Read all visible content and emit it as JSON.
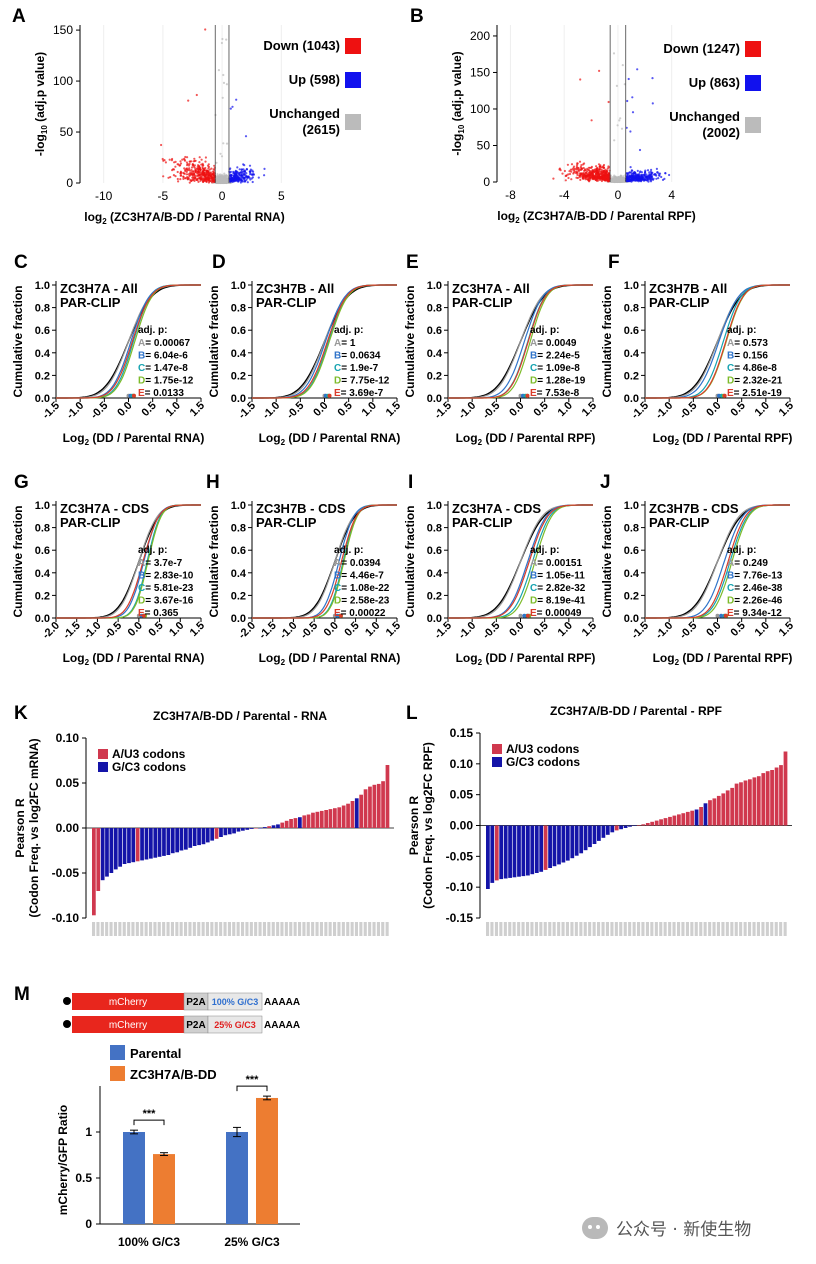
{
  "panels": {
    "A": "A",
    "B": "B",
    "C": "C",
    "D": "D",
    "E": "E",
    "F": "F",
    "G": "G",
    "H": "H",
    "I": "I",
    "J": "J",
    "K": "K",
    "L": "L",
    "M": "M"
  },
  "watermark": "公众号 · 新使生物",
  "colors": {
    "down": "#ee1111",
    "up": "#1111ee",
    "unchanged": "#bbbbbb",
    "au3": "#d0384e",
    "gc3": "#1414a8",
    "parental": "#4472c4",
    "dd": "#ed7d31",
    "A": "#999999",
    "B": "#2f73c9",
    "C": "#16a3b0",
    "D": "#7dbb2a",
    "E": "#d93c2a"
  },
  "chart_data": [
    {
      "id": "A",
      "type": "scatter",
      "xlabel": "log2 (ZC3H7A/B-DD / Parental RNA)",
      "ylabel": "-log10 (adj.p value)",
      "xticks": [
        -10,
        -5,
        0,
        5
      ],
      "yticks": [
        0,
        50,
        100,
        150
      ],
      "xlim": [
        -12,
        7
      ],
      "ylim": [
        0,
        155
      ],
      "vlines": [
        -0.58,
        0.58
      ],
      "legend": [
        {
          "label": "Down (1043)",
          "color": "#ee1111"
        },
        {
          "label": "Up (598)",
          "color": "#1111ee"
        },
        {
          "label": "Unchanged\n(2615)",
          "color": "#bbbbbb"
        }
      ],
      "groups": {
        "down": 1043,
        "up": 598,
        "unchanged": 2615
      }
    },
    {
      "id": "B",
      "type": "scatter",
      "xlabel": "log2 (ZC3H7A/B-DD / Parental RPF)",
      "ylabel": "-log10 (adj.p value)",
      "xticks": [
        -8,
        -4,
        0,
        4
      ],
      "yticks": [
        0,
        50,
        100,
        150,
        200
      ],
      "xlim": [
        -9,
        7
      ],
      "ylim": [
        0,
        215
      ],
      "vlines": [
        -0.58,
        0.58
      ],
      "legend": [
        {
          "label": "Down (1247)",
          "color": "#ee1111"
        },
        {
          "label": "Up (863)",
          "color": "#1111ee"
        },
        {
          "label": "Unchanged\n(2002)",
          "color": "#bbbbbb"
        }
      ],
      "groups": {
        "down": 1247,
        "up": 863,
        "unchanged": 2002
      }
    },
    {
      "id": "C",
      "type": "line",
      "title": "ZC3H7A - All\nPAR-CLIP",
      "xlabel": "Log2 (DD / Parental RNA)",
      "ylabel": "Cumulative fraction",
      "xticks": [
        -1.5,
        -1.0,
        -0.5,
        0.0,
        0.5,
        1.0,
        1.5
      ],
      "yticks": [
        0.0,
        0.2,
        0.4,
        0.6,
        0.8,
        1.0
      ],
      "xlim": [
        -1.5,
        1.5
      ],
      "stats_title": "adj. p:",
      "stats": [
        {
          "k": "A",
          "v": "0.00067"
        },
        {
          "k": "B",
          "v": "6.04e-6"
        },
        {
          "k": "C",
          "v": "1.47e-8"
        },
        {
          "k": "D",
          "v": "1.75e-12"
        },
        {
          "k": "E",
          "v": "0.0133"
        }
      ],
      "medians": [
        0.0,
        0.05,
        0.1,
        0.13,
        0.08
      ],
      "spreads": [
        0.35,
        0.3,
        0.28,
        0.28,
        0.3
      ]
    },
    {
      "id": "D",
      "type": "line",
      "title": "ZC3H7B - All\nPAR-CLIP",
      "xlabel": "Log2 (DD / Parental RNA)",
      "ylabel": "Cumulative fraction",
      "xticks": [
        -1.5,
        -1.0,
        -0.5,
        0.0,
        0.5,
        1.0,
        1.5
      ],
      "yticks": [
        0.0,
        0.2,
        0.4,
        0.6,
        0.8,
        1.0
      ],
      "xlim": [
        -1.5,
        1.5
      ],
      "stats_title": "adj. p:",
      "stats": [
        {
          "k": "A",
          "v": "1"
        },
        {
          "k": "B",
          "v": "0.0634"
        },
        {
          "k": "C",
          "v": "1.9e-7"
        },
        {
          "k": "D",
          "v": "7.75e-12"
        },
        {
          "k": "E",
          "v": "3.69e-7"
        }
      ],
      "medians": [
        0.0,
        0.02,
        0.08,
        0.1,
        0.06
      ],
      "spreads": [
        0.35,
        0.32,
        0.3,
        0.3,
        0.31
      ]
    },
    {
      "id": "E",
      "type": "line",
      "title": "ZC3H7A - All\nPAR-CLIP",
      "xlabel": "Log2 (DD / Parental RPF)",
      "ylabel": "Cumulative fraction",
      "xticks": [
        -1.5,
        -1.0,
        -0.5,
        0.0,
        0.5,
        1.0,
        1.5
      ],
      "yticks": [
        0.0,
        0.2,
        0.4,
        0.6,
        0.8,
        1.0
      ],
      "xlim": [
        -1.5,
        1.5
      ],
      "stats_title": "adj. p:",
      "stats": [
        {
          "k": "A",
          "v": "0.0049"
        },
        {
          "k": "B",
          "v": "2.24e-5"
        },
        {
          "k": "C",
          "v": "1.09e-8"
        },
        {
          "k": "D",
          "v": "1.28e-19"
        },
        {
          "k": "E",
          "v": "7.53e-8"
        }
      ],
      "medians": [
        0.0,
        0.08,
        0.15,
        0.2,
        0.16
      ],
      "spreads": [
        0.35,
        0.3,
        0.28,
        0.27,
        0.28
      ]
    },
    {
      "id": "F",
      "type": "line",
      "title": "ZC3H7B - All\nPAR-CLIP",
      "xlabel": "Log2 (DD / Parental RPF)",
      "ylabel": "Cumulative fraction",
      "xticks": [
        -1.5,
        -1.0,
        -0.5,
        0.0,
        0.5,
        1.0,
        1.5
      ],
      "yticks": [
        0.0,
        0.2,
        0.4,
        0.6,
        0.8,
        1.0
      ],
      "xlim": [
        -1.5,
        1.5
      ],
      "stats_title": "adj. p:",
      "stats": [
        {
          "k": "A",
          "v": "0.573"
        },
        {
          "k": "B",
          "v": "0.156"
        },
        {
          "k": "C",
          "v": "4.86e-8"
        },
        {
          "k": "D",
          "v": "2.32e-21"
        },
        {
          "k": "E",
          "v": "2.51e-19"
        }
      ],
      "medians": [
        0.0,
        0.03,
        0.12,
        0.18,
        0.17
      ],
      "spreads": [
        0.35,
        0.32,
        0.29,
        0.28,
        0.28
      ]
    },
    {
      "id": "G",
      "type": "line",
      "title": "ZC3H7A - CDS\nPAR-CLIP",
      "xlabel": "Log2 (DD / Parental RNA)",
      "ylabel": "Cumulative fraction",
      "xticks": [
        -2.0,
        -1.5,
        -1.0,
        -0.5,
        0.0,
        0.5,
        1.0,
        1.5
      ],
      "yticks": [
        0.0,
        0.2,
        0.4,
        0.6,
        0.8,
        1.0
      ],
      "xlim": [
        -2.0,
        1.5
      ],
      "stats_title": "adj. p:",
      "stats": [
        {
          "k": "A",
          "v": "3.7e-7"
        },
        {
          "k": "B",
          "v": "2.83e-10"
        },
        {
          "k": "C",
          "v": "5.81e-23"
        },
        {
          "k": "D",
          "v": "3.67e-16"
        },
        {
          "k": "E",
          "v": "0.365"
        }
      ],
      "medians": [
        0.0,
        0.12,
        0.2,
        0.22,
        0.1
      ],
      "spreads": [
        0.35,
        0.28,
        0.25,
        0.25,
        0.3
      ]
    },
    {
      "id": "H",
      "type": "line",
      "title": "ZC3H7B - CDS\nPAR-CLIP",
      "xlabel": "Log2 (DD / Parental RNA)",
      "ylabel": "Cumulative fraction",
      "xticks": [
        -2.0,
        -1.5,
        -1.0,
        -0.5,
        0.0,
        0.5,
        1.0,
        1.5
      ],
      "yticks": [
        0.0,
        0.2,
        0.4,
        0.6,
        0.8,
        1.0
      ],
      "xlim": [
        -2.0,
        1.5
      ],
      "stats_title": "adj. p:",
      "stats": [
        {
          "k": "A",
          "v": "0.0394"
        },
        {
          "k": "B",
          "v": "4.46e-7"
        },
        {
          "k": "C",
          "v": "1.08e-22"
        },
        {
          "k": "D",
          "v": "2.58e-23"
        },
        {
          "k": "E",
          "v": "0.00022"
        }
      ],
      "medians": [
        0.0,
        0.1,
        0.2,
        0.22,
        0.16
      ],
      "spreads": [
        0.35,
        0.28,
        0.25,
        0.25,
        0.28
      ]
    },
    {
      "id": "I",
      "type": "line",
      "title": "ZC3H7A - CDS\nPAR-CLIP",
      "xlabel": "Log2 (DD / Parental RPF)",
      "ylabel": "Cumulative fraction",
      "xticks": [
        -1.5,
        -1.0,
        -0.5,
        0.0,
        0.5,
        1.0,
        1.5
      ],
      "yticks": [
        0.0,
        0.2,
        0.4,
        0.6,
        0.8,
        1.0
      ],
      "xlim": [
        -1.5,
        1.5
      ],
      "stats_title": "adj. p:",
      "stats": [
        {
          "k": "A",
          "v": "0.00151"
        },
        {
          "k": "B",
          "v": "1.05e-11"
        },
        {
          "k": "C",
          "v": "2.82e-32"
        },
        {
          "k": "D",
          "v": "8.19e-41"
        },
        {
          "k": "E",
          "v": "0.00049"
        }
      ],
      "medians": [
        0.0,
        0.15,
        0.25,
        0.3,
        0.18
      ],
      "spreads": [
        0.35,
        0.3,
        0.28,
        0.27,
        0.3
      ]
    },
    {
      "id": "J",
      "type": "line",
      "title": "ZC3H7B - CDS\nPAR-CLIP",
      "xlabel": "Log2 (DD / Parental RPF)",
      "ylabel": "Cumulative fraction",
      "xticks": [
        -1.5,
        -1.0,
        -0.5,
        0.0,
        0.5,
        1.0,
        1.5
      ],
      "yticks": [
        0.0,
        0.2,
        0.4,
        0.6,
        0.8,
        1.0
      ],
      "xlim": [
        -1.5,
        1.5
      ],
      "stats_title": "adj. p:",
      "stats": [
        {
          "k": "A",
          "v": "0.249"
        },
        {
          "k": "B",
          "v": "7.76e-13"
        },
        {
          "k": "C",
          "v": "2.46e-38"
        },
        {
          "k": "D",
          "v": "2.26e-46"
        },
        {
          "k": "E",
          "v": "9.34e-12"
        }
      ],
      "medians": [
        0.0,
        0.14,
        0.26,
        0.3,
        0.22
      ],
      "spreads": [
        0.35,
        0.3,
        0.28,
        0.27,
        0.28
      ]
    },
    {
      "id": "K",
      "type": "bar",
      "title": "ZC3H7A/B-DD / Parental - RNA",
      "ylabel": "Pearson R\n(Codon Freq. vs log2FC mRNA)",
      "yticks": [
        -0.1,
        -0.05,
        0.0,
        0.05,
        0.1
      ],
      "ylim": [
        -0.1,
        0.1
      ],
      "legend": [
        {
          "label": "A/U3 codons",
          "color": "#d0384e"
        },
        {
          "label": "G/C3 codons",
          "color": "#1414a8"
        }
      ],
      "values": [
        -0.097,
        -0.07,
        -0.058,
        -0.054,
        -0.05,
        -0.046,
        -0.043,
        -0.04,
        -0.039,
        -0.038,
        -0.037,
        -0.036,
        -0.035,
        -0.034,
        -0.033,
        -0.032,
        -0.031,
        -0.03,
        -0.028,
        -0.027,
        -0.025,
        -0.024,
        -0.022,
        -0.02,
        -0.019,
        -0.018,
        -0.016,
        -0.014,
        -0.012,
        -0.01,
        -0.008,
        -0.007,
        -0.006,
        -0.004,
        -0.003,
        -0.002,
        -0.001,
        0.0,
        0.0,
        0.001,
        0.002,
        0.003,
        0.004,
        0.006,
        0.008,
        0.01,
        0.011,
        0.012,
        0.014,
        0.015,
        0.017,
        0.018,
        0.019,
        0.02,
        0.021,
        0.022,
        0.023,
        0.025,
        0.027,
        0.03,
        0.033,
        0.037,
        0.043,
        0.046,
        0.048,
        0.049,
        0.052,
        0.07
      ],
      "groups": [
        "AU",
        "AU",
        "GC",
        "GC",
        "GC",
        "GC",
        "GC",
        "GC",
        "GC",
        "GC",
        "AU",
        "GC",
        "GC",
        "GC",
        "GC",
        "GC",
        "GC",
        "GC",
        "GC",
        "GC",
        "GC",
        "GC",
        "GC",
        "GC",
        "GC",
        "GC",
        "GC",
        "GC",
        "AU",
        "GC",
        "GC",
        "GC",
        "GC",
        "GC",
        "GC",
        "GC",
        "GC",
        "AU",
        "GC",
        "GC",
        "AU",
        "GC",
        "GC",
        "AU",
        "AU",
        "AU",
        "AU",
        "GC",
        "AU",
        "AU",
        "AU",
        "AU",
        "AU",
        "AU",
        "AU",
        "AU",
        "AU",
        "AU",
        "AU",
        "AU",
        "GC",
        "AU",
        "AU",
        "AU",
        "AU",
        "AU",
        "AU",
        "AU"
      ]
    },
    {
      "id": "L",
      "type": "bar",
      "title": "ZC3H7A/B-DD / Parental - RPF",
      "ylabel": "Pearson R\n(Codon Freq. vs log2FC RPF)",
      "yticks": [
        -0.15,
        -0.1,
        -0.05,
        0.0,
        0.05,
        0.1,
        0.15
      ],
      "ylim": [
        -0.15,
        0.15
      ],
      "legend": [
        {
          "label": "A/U3 codons",
          "color": "#d0384e"
        },
        {
          "label": "G/C3 codons",
          "color": "#1414a8"
        }
      ],
      "values": [
        -0.103,
        -0.093,
        -0.089,
        -0.087,
        -0.086,
        -0.085,
        -0.084,
        -0.083,
        -0.082,
        -0.081,
        -0.079,
        -0.077,
        -0.075,
        -0.072,
        -0.069,
        -0.066,
        -0.063,
        -0.06,
        -0.057,
        -0.053,
        -0.049,
        -0.045,
        -0.04,
        -0.035,
        -0.03,
        -0.025,
        -0.02,
        -0.015,
        -0.011,
        -0.008,
        -0.006,
        -0.004,
        -0.002,
        0.0,
        0.0,
        0.002,
        0.004,
        0.006,
        0.008,
        0.01,
        0.012,
        0.014,
        0.016,
        0.018,
        0.02,
        0.022,
        0.024,
        0.026,
        0.03,
        0.036,
        0.041,
        0.044,
        0.048,
        0.052,
        0.057,
        0.061,
        0.068,
        0.07,
        0.073,
        0.075,
        0.078,
        0.08,
        0.085,
        0.088,
        0.09,
        0.094,
        0.098,
        0.12
      ],
      "groups": [
        "GC",
        "GC",
        "AU",
        "GC",
        "GC",
        "GC",
        "GC",
        "GC",
        "GC",
        "GC",
        "GC",
        "GC",
        "GC",
        "AU",
        "GC",
        "GC",
        "GC",
        "GC",
        "GC",
        "GC",
        "GC",
        "GC",
        "GC",
        "GC",
        "GC",
        "GC",
        "GC",
        "GC",
        "GC",
        "AU",
        "GC",
        "GC",
        "GC",
        "GC",
        "AU",
        "AU",
        "AU",
        "AU",
        "AU",
        "AU",
        "AU",
        "AU",
        "AU",
        "AU",
        "AU",
        "AU",
        "AU",
        "GC",
        "AU",
        "GC",
        "AU",
        "AU",
        "AU",
        "AU",
        "AU",
        "AU",
        "AU",
        "AU",
        "AU",
        "AU",
        "AU",
        "AU",
        "AU",
        "AU",
        "AU",
        "AU",
        "AU",
        "AU"
      ]
    },
    {
      "id": "M",
      "type": "bar",
      "ylabel": "mCherry/GFP Ratio",
      "yticks": [
        0,
        0.5,
        1
      ],
      "ylim": [
        0,
        1.5
      ],
      "categories": [
        "100% G/C3",
        "25% G/C3"
      ],
      "series": [
        {
          "name": "Parental",
          "values": [
            1.0,
            1.0
          ],
          "errors": [
            0.02,
            0.05
          ],
          "color": "#4472c4"
        },
        {
          "name": "ZC3H7A/B-DD",
          "values": [
            0.76,
            1.37
          ],
          "errors": [
            0.015,
            0.02
          ],
          "color": "#ed7d31"
        }
      ],
      "significance": [
        "***",
        "***"
      ],
      "constructs": [
        {
          "mcherry": "mCherry",
          "p2a": "P2A",
          "gc": "100% G/C3",
          "gc_color": "#2f6fcf",
          "tail": "AAAAA"
        },
        {
          "mcherry": "mCherry",
          "p2a": "P2A",
          "gc": "25% G/C3",
          "gc_color": "#e02020",
          "tail": "AAAAA"
        }
      ]
    }
  ]
}
